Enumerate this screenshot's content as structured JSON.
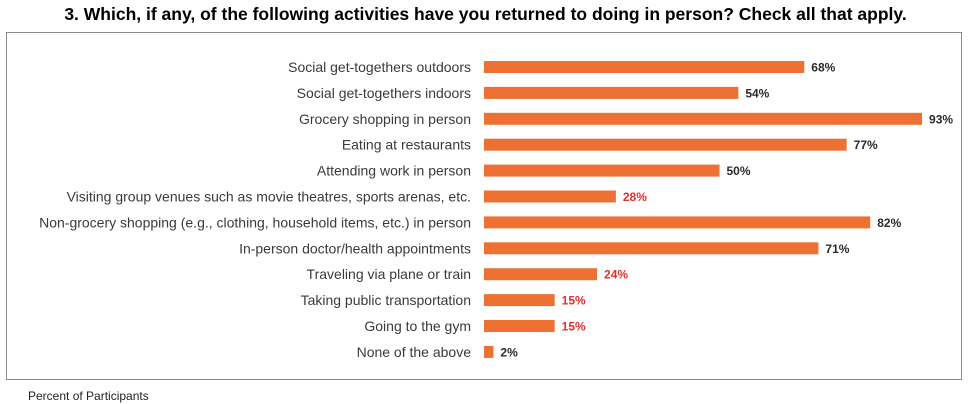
{
  "title": "3. Which, if any, of the following activities have you returned to doing in person? Check all that apply.",
  "footnote": "Percent of Participants",
  "colors": {
    "bar": "#ec7133",
    "label_default": "#2b2b2b",
    "label_highlight": "#e0312a"
  },
  "chart_data": {
    "type": "bar",
    "orientation": "horizontal",
    "title": "3. Which, if any, of the following activities have you returned to doing in person? Check all that apply.",
    "xlabel": "Percent of Participants",
    "ylabel": "",
    "xlim": [
      0,
      100
    ],
    "grid": false,
    "categories": [
      "Social get-togethers outdoors",
      "Social get-togethers indoors",
      "Grocery shopping in person",
      "Eating at restaurants",
      "Attending work in person",
      "Visiting group venues such as movie theatres, sports arenas, etc.",
      "Non-grocery shopping (e.g., clothing, household items, etc.) in person",
      "In-person doctor/health appointments",
      "Traveling via plane or train",
      "Taking public transportation",
      "Going to the gym",
      "None of the above"
    ],
    "values": [
      68,
      54,
      93,
      77,
      50,
      28,
      82,
      71,
      24,
      15,
      15,
      2
    ],
    "value_labels": [
      "68%",
      "54%",
      "93%",
      "77%",
      "50%",
      "28%",
      "82%",
      "71%",
      "24%",
      "15%",
      "15%",
      "2%"
    ],
    "highlighted": [
      false,
      false,
      false,
      false,
      false,
      true,
      false,
      false,
      true,
      true,
      true,
      false
    ]
  }
}
